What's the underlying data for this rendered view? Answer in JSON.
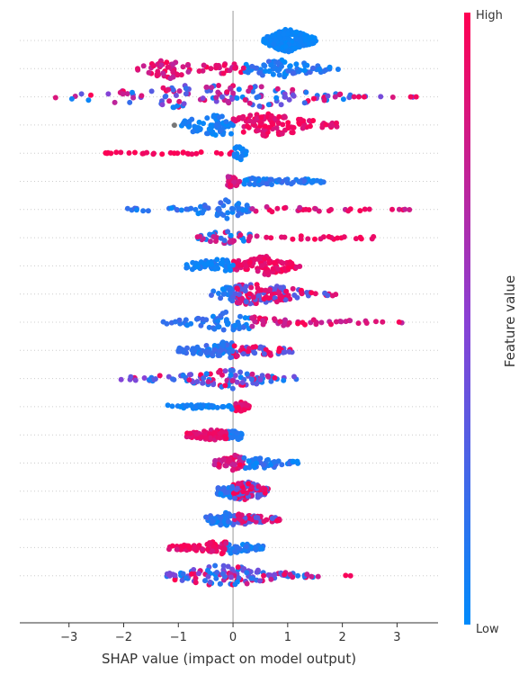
{
  "chart_data": {
    "type": "scatter",
    "subtype": "shap-beeswarm",
    "title": "",
    "xlabel": "SHAP value (impact on model output)",
    "xlim": [
      -3.9,
      3.75
    ],
    "xticks": [
      -3,
      -2,
      -1,
      0,
      1,
      2,
      3
    ],
    "xtick_labels": [
      "−3",
      "−2",
      "−1",
      "0",
      "1",
      "2",
      "3"
    ],
    "grid": false,
    "colorbar": {
      "label": "Feature value",
      "high_label": "High",
      "low_label": "Low",
      "high_color": "#ff0052",
      "low_color": "#008bfb"
    },
    "colors": {
      "axis": "#333333",
      "zero_line": "#999999",
      "row_guide": "#cccccc",
      "missing": "#777777"
    },
    "rows": [
      {
        "min": 0.55,
        "max": 1.55,
        "density": [
          [
            0.6,
            0.3
          ],
          [
            0.85,
            0.8
          ],
          [
            1.0,
            1.0
          ],
          [
            1.2,
            0.7
          ],
          [
            1.5,
            0.2
          ]
        ],
        "low_side": "none",
        "hue": "low"
      },
      {
        "min": -1.8,
        "max": 1.98,
        "density": [
          [
            -1.7,
            0.15
          ],
          [
            -1.4,
            0.6
          ],
          [
            -1.15,
            0.9
          ],
          [
            -0.8,
            0.4
          ],
          [
            -0.3,
            0.4
          ],
          [
            0.3,
            0.4
          ],
          [
            0.8,
            0.8
          ],
          [
            1.3,
            0.5
          ],
          [
            1.9,
            0.1
          ]
        ],
        "low_side": "right",
        "hue": "mixed"
      },
      {
        "min": -3.6,
        "max": 3.4,
        "density": [
          [
            -3.5,
            0.05
          ],
          [
            -2.8,
            0.3
          ],
          [
            -2.0,
            0.6
          ],
          [
            -1.3,
            0.9
          ],
          [
            -0.6,
            1.0
          ],
          [
            0.0,
            1.0
          ],
          [
            0.6,
            0.9
          ],
          [
            1.2,
            0.6
          ],
          [
            1.8,
            0.3
          ],
          [
            2.4,
            0.05
          ]
        ],
        "low_side": "mixed",
        "hue": "mixed",
        "outliers": [
          2.3,
          2.4,
          3.25,
          3.35
        ]
      },
      {
        "min": -1.22,
        "max": 1.9,
        "density": [
          [
            -1.2,
            0.1
          ],
          [
            -0.9,
            0.4
          ],
          [
            -0.5,
            0.8
          ],
          [
            -0.2,
            0.9
          ],
          [
            0.1,
            0.7
          ],
          [
            0.6,
            1.0
          ],
          [
            1.2,
            0.6
          ],
          [
            1.8,
            0.2
          ]
        ],
        "low_side": "left",
        "hue": "split",
        "missing_range": [
          -1.22,
          -0.95
        ]
      },
      {
        "min": -2.4,
        "max": 0.25,
        "density": [
          [
            -2.35,
            0.1
          ],
          [
            -1.5,
            0.1
          ],
          [
            -0.6,
            0.1
          ],
          [
            -0.05,
            0.1
          ],
          [
            0.05,
            0.5
          ],
          [
            0.15,
            0.7
          ],
          [
            0.22,
            0.3
          ]
        ],
        "low_side": "right",
        "hue": "split_at_zero"
      },
      {
        "min": -0.1,
        "max": 1.7,
        "density": [
          [
            -0.05,
            0.5
          ],
          [
            0.1,
            0.3
          ],
          [
            0.5,
            0.3
          ],
          [
            1.0,
            0.25
          ],
          [
            1.6,
            0.15
          ]
        ],
        "low_side": "right",
        "hue": "mixed"
      },
      {
        "min": -1.95,
        "max": 3.25,
        "density": [
          [
            -1.9,
            0.1
          ],
          [
            -1.0,
            0.2
          ],
          [
            -0.3,
            0.5
          ],
          [
            -0.1,
            0.9
          ],
          [
            0.2,
            0.4
          ],
          [
            1.0,
            0.2
          ],
          [
            2.0,
            0.15
          ],
          [
            3.2,
            0.05
          ]
        ],
        "low_side": "left",
        "hue": "mixed_hi"
      },
      {
        "min": -0.7,
        "max": 2.6,
        "density": [
          [
            -0.65,
            0.2
          ],
          [
            -0.3,
            0.6
          ],
          [
            -0.05,
            0.5
          ],
          [
            0.55,
            0.15
          ],
          [
            1.5,
            0.15
          ],
          [
            2.55,
            0.1
          ]
        ],
        "low_side": "mixed",
        "hue": "red_right"
      },
      {
        "min": -0.9,
        "max": 1.25,
        "density": [
          [
            -0.85,
            0.2
          ],
          [
            -0.4,
            0.6
          ],
          [
            -0.1,
            0.5
          ],
          [
            0.3,
            0.5
          ],
          [
            0.6,
            0.9
          ],
          [
            0.9,
            0.5
          ],
          [
            1.2,
            0.15
          ]
        ],
        "low_side": "left",
        "hue": "split"
      },
      {
        "min": -0.4,
        "max": 1.9,
        "density": [
          [
            -0.35,
            0.3
          ],
          [
            0.1,
            0.9
          ],
          [
            0.5,
            0.9
          ],
          [
            0.9,
            0.6
          ],
          [
            1.3,
            0.3
          ],
          [
            1.6,
            0.15
          ]
        ],
        "low_side": "left",
        "hue": "mixed"
      },
      {
        "min": -1.35,
        "max": 3.15,
        "density": [
          [
            -1.3,
            0.1
          ],
          [
            -0.5,
            0.4
          ],
          [
            -0.1,
            0.9
          ],
          [
            0.5,
            0.4
          ],
          [
            1.2,
            0.25
          ],
          [
            2.2,
            0.15
          ],
          [
            3.0,
            0.05
          ]
        ],
        "low_side": "left",
        "hue": "mixed_hi"
      },
      {
        "min": -1.0,
        "max": 1.1,
        "density": [
          [
            -0.95,
            0.2
          ],
          [
            -0.5,
            0.4
          ],
          [
            -0.1,
            0.8
          ],
          [
            0.3,
            0.3
          ],
          [
            0.7,
            0.5
          ],
          [
            1.0,
            0.15
          ]
        ],
        "low_side": "left",
        "hue": "mixed"
      },
      {
        "min": -2.2,
        "max": 1.4,
        "density": [
          [
            -2.1,
            0.1
          ],
          [
            -1.4,
            0.25
          ],
          [
            -0.6,
            0.4
          ],
          [
            0.0,
            0.9
          ],
          [
            0.6,
            0.3
          ],
          [
            1.35,
            0.1
          ]
        ],
        "low_side": "mixed",
        "hue": "mixed"
      },
      {
        "min": -1.2,
        "max": 0.32,
        "density": [
          [
            -1.15,
            0.15
          ],
          [
            -0.5,
            0.15
          ],
          [
            -0.05,
            0.15
          ],
          [
            0.05,
            0.5
          ],
          [
            0.3,
            0.2
          ]
        ],
        "low_side": "left",
        "hue": "blue_left"
      },
      {
        "min": -0.85,
        "max": 0.2,
        "density": [
          [
            -0.8,
            0.2
          ],
          [
            -0.35,
            0.45
          ],
          [
            -0.05,
            0.3
          ],
          [
            0.1,
            0.4
          ],
          [
            0.18,
            0.2
          ]
        ],
        "low_side": "right",
        "hue": "red_left"
      },
      {
        "min": -0.35,
        "max": 1.2,
        "density": [
          [
            -0.3,
            0.3
          ],
          [
            0.0,
            0.7
          ],
          [
            0.3,
            0.4
          ],
          [
            0.7,
            0.4
          ],
          [
            1.15,
            0.15
          ]
        ],
        "low_side": "right",
        "hue": "mixed"
      },
      {
        "min": -0.3,
        "max": 0.65,
        "density": [
          [
            -0.25,
            0.3
          ],
          [
            0.0,
            0.6
          ],
          [
            0.3,
            0.8
          ],
          [
            0.6,
            0.3
          ]
        ],
        "low_side": "left",
        "hue": "mixed"
      },
      {
        "min": -0.5,
        "max": 0.85,
        "density": [
          [
            -0.45,
            0.3
          ],
          [
            -0.1,
            0.6
          ],
          [
            0.2,
            0.4
          ],
          [
            0.5,
            0.3
          ],
          [
            0.8,
            0.15
          ]
        ],
        "low_side": "left",
        "hue": "mixed"
      },
      {
        "min": -1.2,
        "max": 0.55,
        "density": [
          [
            -1.15,
            0.15
          ],
          [
            -0.6,
            0.3
          ],
          [
            -0.2,
            0.6
          ],
          [
            0.1,
            0.4
          ],
          [
            0.5,
            0.15
          ]
        ],
        "low_side": "right",
        "hue": "red_left"
      },
      {
        "min": -1.35,
        "max": 2.15,
        "density": [
          [
            -1.3,
            0.15
          ],
          [
            -0.8,
            0.6
          ],
          [
            -0.3,
            0.9
          ],
          [
            0.1,
            0.8
          ],
          [
            0.6,
            0.4
          ],
          [
            1.2,
            0.2
          ],
          [
            1.8,
            0.05
          ]
        ],
        "low_side": "mixed",
        "hue": "mixed",
        "outliers": [
          2.15
        ]
      }
    ]
  }
}
